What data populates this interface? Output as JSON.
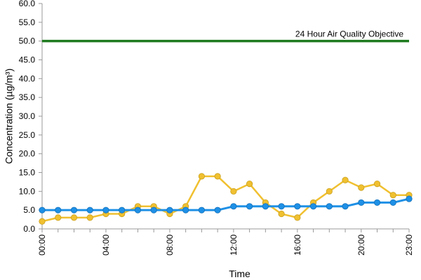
{
  "chart_data": {
    "type": "line",
    "title": "",
    "xlabel": "Time",
    "ylabel": "Concentration (µg/m³)",
    "ylim": [
      0,
      60
    ],
    "ytick_labels": [
      "0.0",
      "5.0",
      "10.0",
      "15.0",
      "20.0",
      "25.0",
      "30.0",
      "35.0",
      "40.0",
      "45.0",
      "50.0",
      "55.0",
      "60.0"
    ],
    "x": [
      "00:00",
      "01:00",
      "02:00",
      "03:00",
      "04:00",
      "05:00",
      "06:00",
      "07:00",
      "08:00",
      "09:00",
      "10:00",
      "11:00",
      "12:00",
      "13:00",
      "14:00",
      "15:00",
      "16:00",
      "17:00",
      "18:00",
      "19:00",
      "20:00",
      "21:00",
      "22:00",
      "23:00"
    ],
    "xtick_labels": [
      "00:00",
      "04:00",
      "08:00",
      "12:00",
      "16:00",
      "20:00",
      "23:00"
    ],
    "series": [
      {
        "name": "",
        "color": "#f0c030",
        "values": [
          2,
          3,
          3,
          3,
          4,
          4,
          6,
          6,
          4,
          6,
          14,
          14,
          10,
          12,
          7,
          4,
          3,
          7,
          10,
          13,
          11,
          12,
          9,
          9
        ]
      },
      {
        "name": "",
        "color": "#1e90e6",
        "values": [
          5,
          5,
          5,
          5,
          5,
          5,
          5,
          5,
          5,
          5,
          5,
          5,
          6,
          6,
          6,
          6,
          6,
          6,
          6,
          6,
          7,
          7,
          7,
          8
        ]
      }
    ],
    "reference_line": {
      "value": 50,
      "label": "24 Hour Air Quality Objective",
      "color": "#1e7a1e"
    },
    "grid": false,
    "legend": "none"
  }
}
